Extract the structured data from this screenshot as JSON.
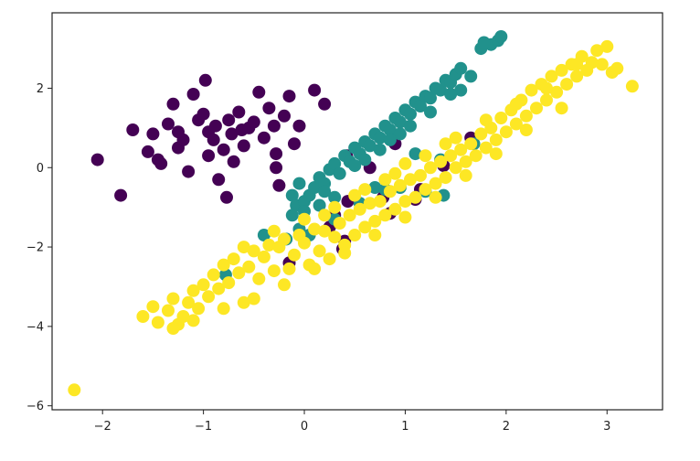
{
  "chart_data": {
    "type": "scatter",
    "title": "",
    "xlabel": "",
    "ylabel": "",
    "xlim": [
      -2.5,
      3.55
    ],
    "ylim": [
      -6.1,
      3.9
    ],
    "xticks": [
      -2,
      -1,
      0,
      1,
      2,
      3
    ],
    "yticks": [
      -6,
      -4,
      -2,
      0,
      2
    ],
    "xtick_labels": [
      "−2",
      "−1",
      "0",
      "1",
      "2",
      "3"
    ],
    "ytick_labels": [
      "−6",
      "−4",
      "−2",
      "0",
      "2"
    ],
    "grid": false,
    "legend": "none",
    "series": [
      {
        "color": "#440154",
        "points": [
          [
            -2.05,
            0.2
          ],
          [
            -1.82,
            -0.7
          ],
          [
            -1.7,
            0.95
          ],
          [
            -1.55,
            0.4
          ],
          [
            -1.5,
            0.85
          ],
          [
            -1.45,
            0.2
          ],
          [
            -1.42,
            0.1
          ],
          [
            -1.35,
            1.1
          ],
          [
            -1.3,
            1.6
          ],
          [
            -1.25,
            0.5
          ],
          [
            -1.2,
            0.7
          ],
          [
            -1.15,
            -0.1
          ],
          [
            -1.1,
            1.85
          ],
          [
            -1.05,
            1.2
          ],
          [
            -1.0,
            1.35
          ],
          [
            -0.98,
            2.2
          ],
          [
            -0.95,
            0.9
          ],
          [
            -0.9,
            0.7
          ],
          [
            -0.88,
            1.05
          ],
          [
            -0.85,
            -0.3
          ],
          [
            -0.8,
            0.45
          ],
          [
            -0.75,
            1.2
          ],
          [
            -0.72,
            0.85
          ],
          [
            -0.7,
            0.15
          ],
          [
            -0.65,
            1.4
          ],
          [
            -0.62,
            0.95
          ],
          [
            -0.6,
            0.55
          ],
          [
            -0.55,
            1.0
          ],
          [
            -0.5,
            1.15
          ],
          [
            -0.45,
            1.9
          ],
          [
            -0.4,
            0.75
          ],
          [
            -0.35,
            1.5
          ],
          [
            -0.3,
            1.05
          ],
          [
            -0.28,
            0.0
          ],
          [
            -0.25,
            -0.45
          ],
          [
            -0.2,
            1.3
          ],
          [
            -0.15,
            1.8
          ],
          [
            -0.1,
            0.6
          ],
          [
            -0.05,
            1.05
          ],
          [
            0.1,
            1.95
          ],
          [
            0.2,
            1.6
          ],
          [
            -0.95,
            0.3
          ],
          [
            -1.25,
            0.9
          ],
          [
            -0.77,
            -0.75
          ],
          [
            -0.28,
            0.35
          ],
          [
            0.25,
            -1.5
          ],
          [
            0.4,
            -1.85
          ],
          [
            0.38,
            -2.05
          ],
          [
            0.3,
            -1.2
          ],
          [
            0.43,
            -0.85
          ],
          [
            0.78,
            -0.75
          ],
          [
            0.85,
            -1.15
          ],
          [
            1.1,
            -0.8
          ],
          [
            1.15,
            -0.55
          ],
          [
            1.38,
            0.05
          ],
          [
            1.65,
            0.75
          ],
          [
            -0.15,
            -2.4
          ],
          [
            0.9,
            0.6
          ],
          [
            0.65,
            0.0
          ],
          [
            0.42,
            0.3
          ]
        ]
      },
      {
        "color": "#21918c",
        "points": [
          [
            -0.78,
            -2.7
          ],
          [
            -0.4,
            -1.7
          ],
          [
            -0.18,
            -1.8
          ],
          [
            -0.12,
            -1.2
          ],
          [
            -0.05,
            -1.55
          ],
          [
            0.05,
            -1.7
          ],
          [
            0.3,
            -1.3
          ],
          [
            0.55,
            -0.9
          ],
          [
            0.7,
            -0.5
          ],
          [
            0.8,
            -0.55
          ],
          [
            0.95,
            -0.5
          ],
          [
            1.2,
            -0.6
          ],
          [
            1.38,
            -0.7
          ],
          [
            1.35,
            0.2
          ],
          [
            1.1,
            0.35
          ],
          [
            1.68,
            0.6
          ],
          [
            -0.12,
            -0.7
          ],
          [
            -0.08,
            -0.95
          ],
          [
            0.0,
            -0.85
          ],
          [
            0.05,
            -0.7
          ],
          [
            0.1,
            -0.5
          ],
          [
            0.15,
            -0.25
          ],
          [
            0.2,
            -0.4
          ],
          [
            0.25,
            -0.05
          ],
          [
            0.3,
            0.1
          ],
          [
            0.35,
            -0.15
          ],
          [
            0.4,
            0.3
          ],
          [
            0.45,
            0.15
          ],
          [
            0.5,
            0.5
          ],
          [
            0.55,
            0.35
          ],
          [
            0.6,
            0.65
          ],
          [
            0.65,
            0.55
          ],
          [
            0.7,
            0.85
          ],
          [
            0.75,
            0.75
          ],
          [
            0.8,
            1.05
          ],
          [
            0.85,
            0.95
          ],
          [
            0.9,
            1.25
          ],
          [
            0.95,
            1.15
          ],
          [
            1.0,
            1.45
          ],
          [
            1.05,
            1.35
          ],
          [
            1.1,
            1.65
          ],
          [
            1.15,
            1.55
          ],
          [
            1.2,
            1.8
          ],
          [
            1.25,
            1.75
          ],
          [
            1.3,
            2.0
          ],
          [
            1.35,
            1.95
          ],
          [
            1.4,
            2.2
          ],
          [
            1.45,
            2.15
          ],
          [
            1.5,
            2.35
          ],
          [
            1.55,
            2.5
          ],
          [
            1.65,
            2.3
          ],
          [
            1.75,
            3.0
          ],
          [
            1.85,
            3.1
          ],
          [
            1.92,
            3.2
          ],
          [
            1.95,
            3.3
          ],
          [
            1.78,
            3.15
          ],
          [
            1.55,
            1.95
          ],
          [
            0.2,
            -0.6
          ],
          [
            0.0,
            -1.1
          ],
          [
            -0.05,
            -0.4
          ],
          [
            0.6,
            0.2
          ],
          [
            0.75,
            0.45
          ],
          [
            0.95,
            0.85
          ],
          [
            1.05,
            1.05
          ],
          [
            0.3,
            -0.75
          ],
          [
            0.15,
            -0.95
          ],
          [
            1.25,
            1.4
          ],
          [
            1.45,
            1.85
          ],
          [
            0.5,
            0.05
          ],
          [
            0.85,
            0.7
          ]
        ]
      },
      {
        "color": "#fde725",
        "points": [
          [
            -2.28,
            -5.6
          ],
          [
            -1.6,
            -3.75
          ],
          [
            -1.5,
            -3.5
          ],
          [
            -1.45,
            -3.9
          ],
          [
            -1.35,
            -3.6
          ],
          [
            -1.3,
            -3.3
          ],
          [
            -1.25,
            -3.95
          ],
          [
            -1.2,
            -3.75
          ],
          [
            -1.15,
            -3.4
          ],
          [
            -1.1,
            -3.1
          ],
          [
            -1.05,
            -3.55
          ],
          [
            -1.0,
            -2.95
          ],
          [
            -0.95,
            -3.25
          ],
          [
            -0.9,
            -2.7
          ],
          [
            -0.85,
            -3.05
          ],
          [
            -0.8,
            -2.45
          ],
          [
            -0.75,
            -2.9
          ],
          [
            -0.7,
            -2.3
          ],
          [
            -0.65,
            -2.65
          ],
          [
            -0.6,
            -3.4
          ],
          [
            -0.55,
            -2.5
          ],
          [
            -0.5,
            -2.1
          ],
          [
            -0.45,
            -2.8
          ],
          [
            -0.4,
            -2.25
          ],
          [
            -0.35,
            -1.95
          ],
          [
            -0.3,
            -2.6
          ],
          [
            -0.25,
            -2.0
          ],
          [
            -0.2,
            -1.8
          ],
          [
            -0.15,
            -2.55
          ],
          [
            -0.1,
            -2.2
          ],
          [
            -0.05,
            -1.7
          ],
          [
            0.0,
            -1.9
          ],
          [
            0.05,
            -2.45
          ],
          [
            0.1,
            -1.55
          ],
          [
            0.15,
            -2.1
          ],
          [
            0.2,
            -1.6
          ],
          [
            0.25,
            -2.3
          ],
          [
            0.3,
            -1.75
          ],
          [
            0.35,
            -1.4
          ],
          [
            0.4,
            -1.95
          ],
          [
            0.45,
            -1.2
          ],
          [
            0.5,
            -1.7
          ],
          [
            0.55,
            -1.05
          ],
          [
            0.6,
            -1.5
          ],
          [
            0.65,
            -0.9
          ],
          [
            0.7,
            -1.35
          ],
          [
            0.75,
            -0.85
          ],
          [
            0.8,
            -1.2
          ],
          [
            0.85,
            -0.6
          ],
          [
            0.9,
            -1.05
          ],
          [
            0.95,
            -0.45
          ],
          [
            1.0,
            -0.85
          ],
          [
            1.05,
            -0.3
          ],
          [
            1.1,
            -0.75
          ],
          [
            1.15,
            -0.2
          ],
          [
            1.2,
            -0.55
          ],
          [
            1.25,
            0.0
          ],
          [
            1.3,
            -0.4
          ],
          [
            1.35,
            0.15
          ],
          [
            1.4,
            -0.25
          ],
          [
            1.45,
            0.3
          ],
          [
            1.5,
            0.0
          ],
          [
            1.55,
            0.45
          ],
          [
            1.6,
            0.15
          ],
          [
            1.65,
            0.6
          ],
          [
            1.7,
            0.3
          ],
          [
            1.75,
            0.85
          ],
          [
            1.8,
            0.5
          ],
          [
            1.85,
            1.0
          ],
          [
            1.9,
            0.7
          ],
          [
            1.95,
            1.25
          ],
          [
            2.0,
            0.9
          ],
          [
            2.05,
            1.45
          ],
          [
            2.1,
            1.1
          ],
          [
            2.15,
            1.7
          ],
          [
            2.2,
            1.3
          ],
          [
            2.25,
            1.95
          ],
          [
            2.3,
            1.5
          ],
          [
            2.35,
            2.1
          ],
          [
            2.4,
            1.7
          ],
          [
            2.45,
            2.3
          ],
          [
            2.5,
            1.9
          ],
          [
            2.55,
            2.45
          ],
          [
            2.6,
            2.1
          ],
          [
            2.65,
            2.6
          ],
          [
            2.7,
            2.3
          ],
          [
            2.75,
            2.8
          ],
          [
            2.8,
            2.45
          ],
          [
            2.85,
            2.65
          ],
          [
            2.9,
            2.95
          ],
          [
            2.95,
            2.6
          ],
          [
            3.0,
            3.05
          ],
          [
            3.05,
            2.4
          ],
          [
            3.1,
            2.5
          ],
          [
            3.25,
            2.05
          ],
          [
            2.55,
            1.5
          ],
          [
            2.2,
            0.95
          ],
          [
            1.9,
            0.35
          ],
          [
            1.6,
            -0.2
          ],
          [
            1.3,
            -0.75
          ],
          [
            1.0,
            -1.25
          ],
          [
            0.7,
            -1.7
          ],
          [
            0.4,
            -2.15
          ],
          [
            0.1,
            -2.55
          ],
          [
            -0.2,
            -2.95
          ],
          [
            -0.5,
            -3.3
          ],
          [
            -0.8,
            -3.55
          ],
          [
            -1.1,
            -3.85
          ],
          [
            -1.3,
            -4.05
          ],
          [
            -0.6,
            -2.0
          ],
          [
            -0.3,
            -1.6
          ],
          [
            0.0,
            -1.3
          ],
          [
            0.3,
            -1.0
          ],
          [
            0.6,
            -0.55
          ],
          [
            0.9,
            -0.15
          ],
          [
            1.2,
            0.3
          ],
          [
            1.5,
            0.75
          ],
          [
            1.8,
            1.2
          ],
          [
            2.1,
            1.6
          ],
          [
            2.4,
            2.0
          ],
          [
            2.7,
            2.6
          ],
          [
            1.4,
            0.6
          ],
          [
            1.0,
            0.1
          ],
          [
            0.8,
            -0.3
          ],
          [
            0.5,
            -0.7
          ],
          [
            0.2,
            -1.2
          ]
        ]
      }
    ]
  }
}
